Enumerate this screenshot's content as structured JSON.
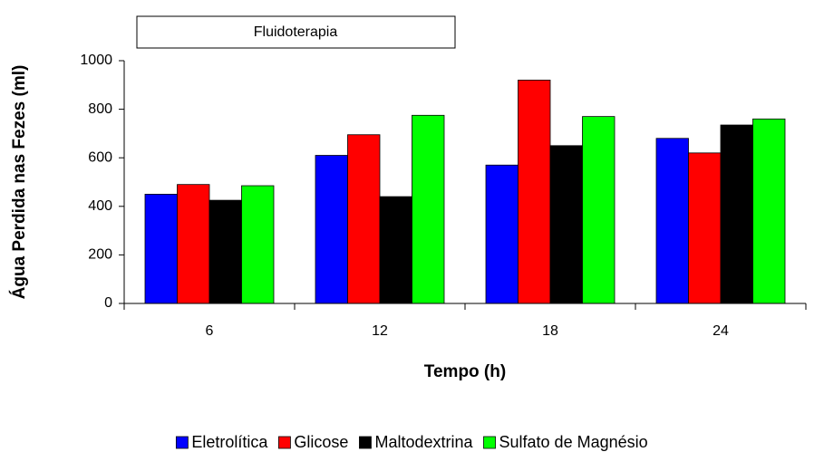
{
  "chart_data": {
    "type": "bar",
    "title": "Fluidoterapia",
    "x_label": "Tempo (h)",
    "y_label": "Água Perdida nas Fezes (ml)",
    "categories": [
      "6",
      "12",
      "18",
      "24"
    ],
    "series": [
      {
        "name": "Eletrolítica",
        "color": "#0000ff",
        "values": [
          450,
          610,
          570,
          680
        ]
      },
      {
        "name": "Glicose",
        "color": "#ff0000",
        "values": [
          490,
          695,
          920,
          620
        ]
      },
      {
        "name": "Maltodextrina",
        "color": "#000000",
        "values": [
          425,
          440,
          650,
          735
        ]
      },
      {
        "name": "Sulfato de Magnésio",
        "color": "#00ff00",
        "values": [
          485,
          775,
          770,
          760
        ]
      }
    ],
    "ylim": [
      0,
      1000
    ],
    "yticks": [
      0,
      200,
      400,
      600,
      800,
      1000
    ],
    "legend": "bottom"
  }
}
